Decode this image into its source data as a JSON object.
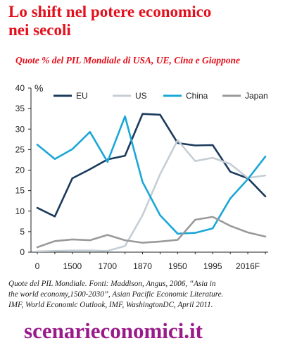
{
  "header": {
    "title_line1": "Lo shift nel potere economico",
    "title_line2": "nei secoli",
    "subtitle": "Quote % del PIL Mondiale di USA, UE, Cina e Giappone"
  },
  "footer": {
    "source_line1": "Quote del PIL Mondiale. Fonti: Maddison, Angus, 2006, “Asia in",
    "source_line2": "the world economy,1500-2030”, Asian Pacific Economic Literature.",
    "source_line3": "IMF, World Economic Outlook, IMF, WashingtonDC, April 2011.",
    "brand": "scenarieconomici.it"
  },
  "chart_data": {
    "type": "line",
    "ylabel": "%",
    "ylim": [
      0,
      40
    ],
    "y_ticks": [
      0,
      5,
      10,
      15,
      20,
      25,
      30,
      35,
      40
    ],
    "x_tick_labels": [
      "0",
      "1500",
      "1700",
      "1870",
      "1950",
      "1995",
      "2016F"
    ],
    "x_tick_positions": [
      0,
      2,
      4,
      6,
      8,
      10,
      12
    ],
    "x": [
      0,
      1,
      2,
      3,
      4,
      5,
      6,
      7,
      8,
      9,
      10,
      11,
      12,
      13
    ],
    "grid": false,
    "legend_position": "top",
    "series": [
      {
        "name": "EU",
        "color": "#1b3a5c",
        "values": [
          10.8,
          8.7,
          18.0,
          20.2,
          22.6,
          23.5,
          33.7,
          33.5,
          26.6,
          26.0,
          26.1,
          19.6,
          18.0,
          13.6
        ]
      },
      {
        "name": "US",
        "color": "#c5ced4",
        "values": [
          0.2,
          0.3,
          0.4,
          0.4,
          0.3,
          1.5,
          9.0,
          19.0,
          27.3,
          22.2,
          23.0,
          21.5,
          18.1,
          18.7
        ]
      },
      {
        "name": "China",
        "color": "#1aa7d6",
        "values": [
          26.2,
          22.7,
          25.1,
          29.3,
          22.0,
          33.1,
          17.1,
          9.0,
          4.5,
          4.7,
          5.8,
          13.1,
          17.8,
          23.3
        ]
      },
      {
        "name": "Japan",
        "color": "#9a9a9a",
        "values": [
          1.2,
          2.7,
          3.1,
          2.9,
          4.2,
          2.9,
          2.3,
          2.6,
          3.0,
          7.9,
          8.6,
          6.4,
          4.8,
          3.8
        ]
      }
    ]
  }
}
